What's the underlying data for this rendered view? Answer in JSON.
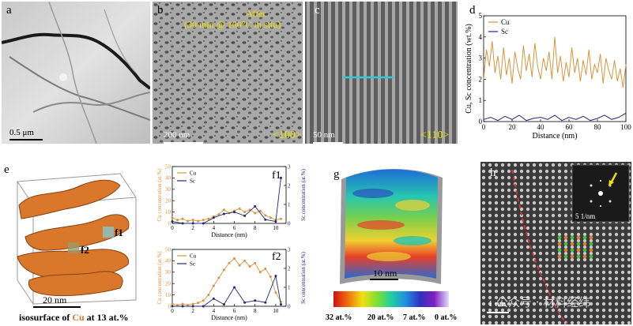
{
  "panels": {
    "a": {
      "label": "a",
      "scale": "0.5 μm"
    },
    "b": {
      "label": "b",
      "note_line1": "After",
      "note_line2": "(30 min  @ 160°C in situ)",
      "scale": "200 nm",
      "zone": "<100>"
    },
    "c": {
      "label": "c",
      "scale": "50 nm",
      "zone": "<110>"
    },
    "d": {
      "label": "d"
    },
    "e": {
      "label": "e",
      "scale": "20 nm",
      "f1": "f1",
      "f2": "f2",
      "caption_pre": "isosurface of ",
      "caption_el": "Cu",
      "caption_post": " at 13 at.%"
    },
    "f1": {
      "label": "f1"
    },
    "f2": {
      "label": "f2"
    },
    "g": {
      "label": "g",
      "scale": "10 nm",
      "colorbar": [
        "32 at.%",
        "20 at.%",
        "7 at.%",
        "0 at.%"
      ]
    },
    "h": {
      "label": "h",
      "inset_scale": "5 1/nm",
      "scale": "1 nm"
    },
    "watermark": "公众号 · 材料经纬"
  },
  "colors": {
    "cu": "#d9953a",
    "sc": "#1f2a7a",
    "label_yellow": "#f0e000",
    "cyan": "#31c8d8"
  },
  "chart_data": [
    {
      "type": "line",
      "panel": "d",
      "xlabel": "Distance (nm)",
      "ylabel": "Cu, Sc concentration (wt.%)",
      "xlim": [
        0,
        100
      ],
      "ylim": [
        0,
        5
      ],
      "xticks": [
        "0",
        "20",
        "40",
        "60",
        "80",
        "100"
      ],
      "yticks": [
        "0",
        "1",
        "2",
        "3",
        "4",
        "5"
      ],
      "legend": "top-left",
      "series": [
        {
          "name": "Cu",
          "x": [
            0,
            2,
            4,
            6,
            8,
            10,
            12,
            14,
            16,
            18,
            20,
            22,
            24,
            26,
            28,
            30,
            32,
            34,
            36,
            38,
            40,
            42,
            44,
            46,
            48,
            50,
            52,
            54,
            56,
            58,
            60,
            62,
            64,
            66,
            68,
            70,
            72,
            74,
            76,
            78,
            80,
            82,
            84,
            86,
            88,
            90,
            92,
            94,
            96,
            98,
            100
          ],
          "y": [
            2.0,
            3.4,
            2.6,
            3.8,
            2.3,
            3.1,
            2.0,
            3.5,
            2.2,
            3.0,
            1.8,
            3.3,
            2.5,
            2.0,
            3.6,
            2.4,
            3.2,
            2.1,
            3.7,
            2.6,
            2.0,
            3.0,
            2.4,
            3.3,
            2.0,
            4.0,
            2.3,
            3.1,
            1.9,
            2.8,
            2.1,
            3.5,
            2.3,
            3.0,
            1.9,
            2.9,
            2.2,
            3.4,
            2.0,
            2.7,
            2.3,
            3.2,
            1.8,
            3.0,
            2.4,
            2.0,
            2.9,
            1.9,
            2.5,
            1.6,
            2.7
          ]
        },
        {
          "name": "Sc",
          "x": [
            0,
            5,
            10,
            15,
            20,
            25,
            30,
            35,
            40,
            45,
            50,
            55,
            60,
            65,
            70,
            75,
            80,
            85,
            90,
            95,
            100
          ],
          "y": [
            0.1,
            0.2,
            0.05,
            0.25,
            0.1,
            0.3,
            0.05,
            0.15,
            0.2,
            0.1,
            0.3,
            0.05,
            0.2,
            0.1,
            0.25,
            0.05,
            0.15,
            0.3,
            0.1,
            0.2,
            0.4
          ]
        }
      ]
    },
    {
      "type": "line",
      "panel": "f1",
      "xlabel": "Distance (nm)",
      "ylabel": "Cu concentration (at.%)",
      "ylabel2": "Sc concentration (at.%)",
      "xlim": [
        0,
        11
      ],
      "ylim": [
        0,
        50
      ],
      "ylim2": [
        0,
        3
      ],
      "xticks": [
        "0",
        "2",
        "4",
        "6",
        "8",
        "10"
      ],
      "yticks": [
        "0",
        "10",
        "20",
        "30",
        "40",
        "50"
      ],
      "yticks2": [
        "0",
        "1",
        "2",
        "3"
      ],
      "legend": "top-left",
      "series": [
        {
          "name": "Cu",
          "x": [
            0,
            0.5,
            1,
            1.5,
            2,
            2.5,
            3,
            3.5,
            4,
            4.5,
            5,
            5.5,
            6,
            6.5,
            7,
            7.5,
            8,
            8.5,
            9,
            9.5,
            10,
            10.5
          ],
          "y": [
            5,
            3,
            4,
            2,
            3,
            2,
            3,
            4,
            6,
            8,
            12,
            9,
            11,
            13,
            10,
            12,
            9,
            11,
            7,
            5,
            3,
            4
          ]
        },
        {
          "name": "Sc",
          "x": [
            0,
            1,
            2,
            3,
            4,
            5,
            6,
            7,
            8,
            9,
            10,
            10.5
          ],
          "y": [
            0.1,
            0,
            0,
            0,
            0.3,
            0.5,
            0.6,
            0.4,
            0.9,
            0.2,
            0.1,
            2.4
          ]
        }
      ]
    },
    {
      "type": "line",
      "panel": "f2",
      "xlabel": "Distance (nm)",
      "ylabel": "Cu concentration (at.%)",
      "ylabel2": "Sc concentration (at.%)",
      "xlim": [
        0,
        11
      ],
      "ylim": [
        0,
        50
      ],
      "ylim2": [
        0,
        3
      ],
      "xticks": [
        "0",
        "2",
        "4",
        "6",
        "8",
        "10"
      ],
      "yticks": [
        "0",
        "10",
        "20",
        "30",
        "40",
        "50"
      ],
      "yticks2": [
        "0",
        "1",
        "2",
        "3"
      ],
      "legend": "top-left",
      "series": [
        {
          "name": "Cu",
          "x": [
            0,
            0.5,
            1,
            1.5,
            2,
            2.5,
            3,
            3.5,
            4,
            4.5,
            5,
            5.5,
            6,
            6.5,
            7,
            7.5,
            8,
            8.5,
            9,
            9.5,
            10,
            10.5
          ],
          "y": [
            2,
            1,
            2,
            1,
            2,
            3,
            5,
            10,
            18,
            25,
            32,
            38,
            42,
            36,
            40,
            35,
            38,
            30,
            33,
            26,
            12,
            4
          ]
        },
        {
          "name": "Sc",
          "x": [
            0,
            1,
            2,
            3,
            4,
            5,
            6,
            7,
            8,
            9,
            10,
            10.5
          ],
          "y": [
            0,
            0,
            0,
            0,
            0.4,
            0.1,
            1.0,
            0.2,
            0.3,
            0.2,
            1.6,
            0.1
          ]
        }
      ]
    }
  ]
}
